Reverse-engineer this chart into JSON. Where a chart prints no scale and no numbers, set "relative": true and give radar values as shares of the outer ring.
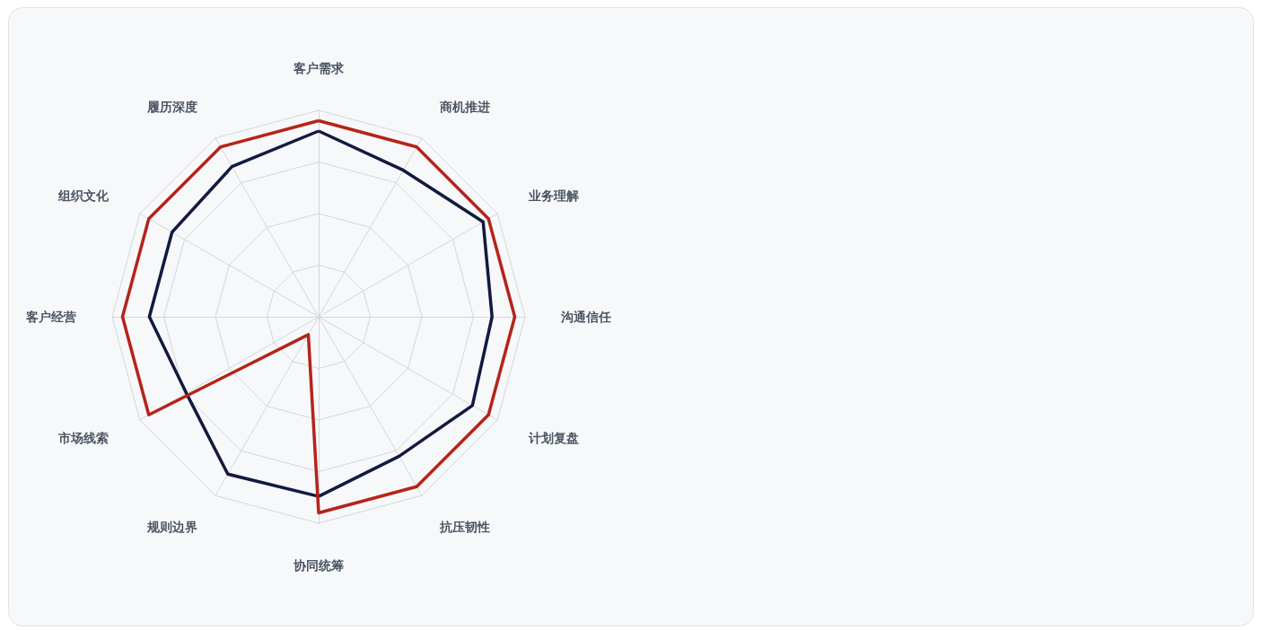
{
  "chart_data": {
    "type": "radar",
    "relative": true,
    "grid": true,
    "marker": "none",
    "line_style": "solid",
    "categories": [
      "客户需求",
      "商机推进",
      "业务理解",
      "沟通信任",
      "计划复盘",
      "抗压韧性",
      "协同统筹",
      "规则边界",
      "市场线索",
      "客户经营",
      "组织文化",
      "履历深度"
    ],
    "series": [
      {
        "color": "#111a3f",
        "values": [
          0.9,
          0.82,
          0.92,
          0.84,
          0.86,
          0.78,
          0.87,
          0.88,
          0.74,
          0.82,
          0.82,
          0.84
        ]
      },
      {
        "color": "#b5231a",
        "values": [
          0.95,
          0.95,
          0.95,
          0.95,
          0.95,
          0.95,
          0.95,
          0.1,
          0.95,
          0.95,
          0.95,
          0.95
        ]
      }
    ]
  }
}
